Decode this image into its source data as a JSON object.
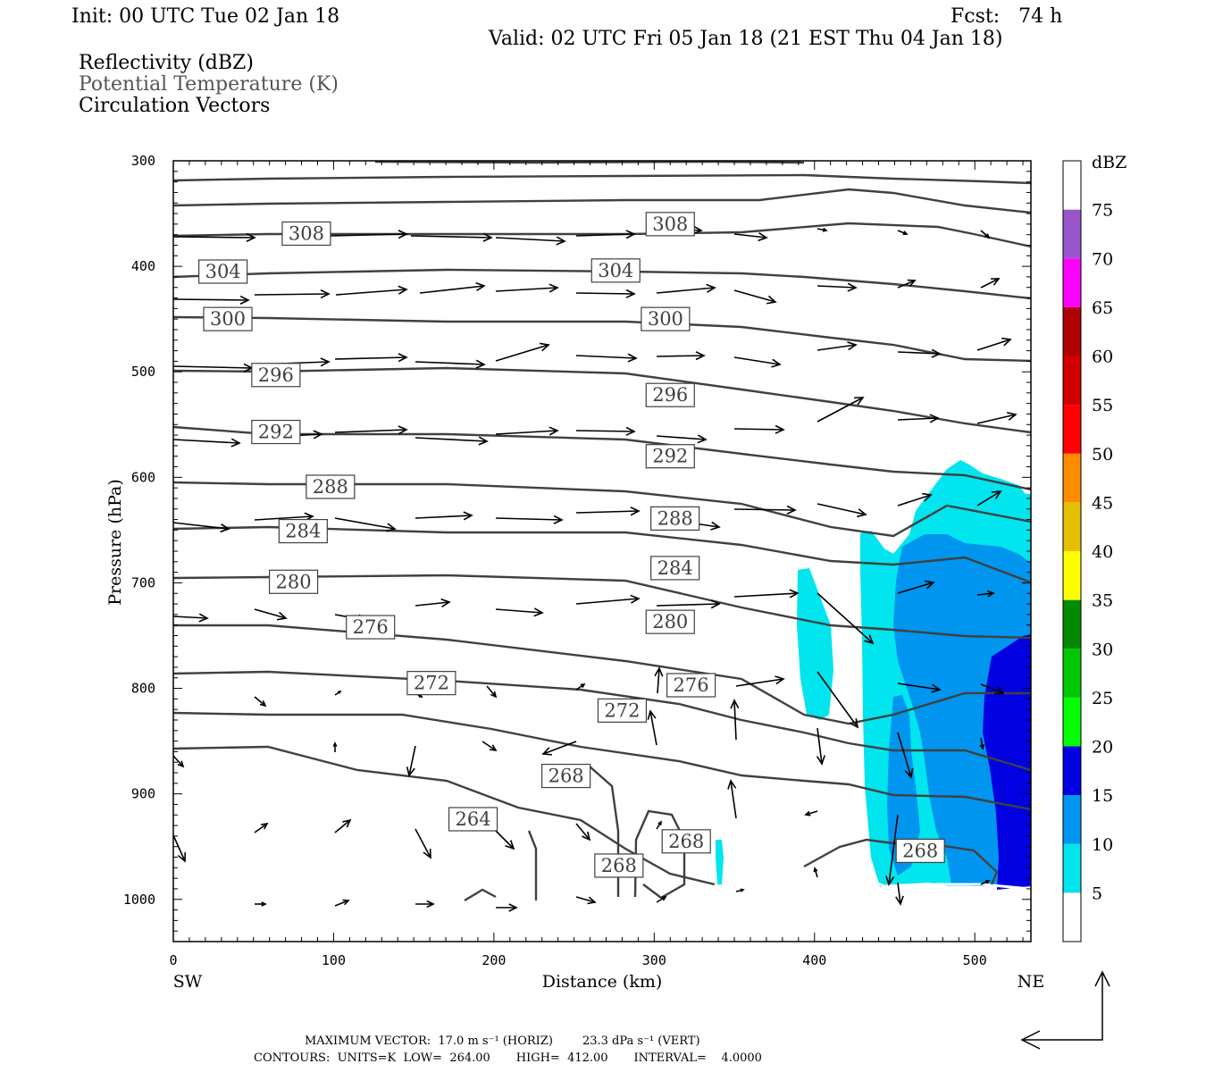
{
  "header": {
    "init": "Init: 00 UTC Tue 02 Jan 18",
    "fcst": "Fcst:   74 h",
    "valid": "Valid: 02 UTC Fri 05 Jan 18 (21 EST Thu 04 Jan 18)",
    "fields": [
      "Reflectivity (dBZ)",
      "Potential Temperature (K)",
      "Circulation Vectors"
    ]
  },
  "footer": {
    "line1": "MAXIMUM VECTOR:  17.0 m s⁻¹ (HORIZ)        23.3 dPa s⁻¹ (VERT)",
    "line2": "CONTOURS:  UNITS=K  LOW=  264.00       HIGH=  412.00       INTERVAL=    4.0000"
  },
  "chart_data": {
    "type": "cross-section",
    "xlabel": "Distance (km)",
    "ylabel": "Pressure (hPa)",
    "xlim": [
      0,
      535
    ],
    "ylim": [
      1040,
      300
    ],
    "x_ticks": [
      0,
      100,
      200,
      300,
      400,
      500
    ],
    "y_ticks": [
      300,
      400,
      500,
      600,
      700,
      800,
      900,
      1000
    ],
    "x_end_labels": {
      "left": "SW",
      "right": "NE"
    },
    "colorbar": {
      "title": "dBZ",
      "levels": [
        5,
        10,
        15,
        20,
        25,
        30,
        35,
        40,
        45,
        50,
        55,
        60,
        65,
        70,
        75
      ],
      "colors": [
        "#ffffff",
        "#00e5ee",
        "#0095ee",
        "#0000e0",
        "#00ff00",
        "#00c800",
        "#008b00",
        "#ffff00",
        "#e6c000",
        "#ff8c00",
        "#ff0000",
        "#d40000",
        "#b00000",
        "#ff00ff",
        "#9955cc",
        "#ffffff"
      ]
    },
    "theta_labels": [
      {
        "text": "308",
        "x": 83,
        "p": 369
      },
      {
        "text": "308",
        "x": 310,
        "p": 360
      },
      {
        "text": "304",
        "x": 31,
        "p": 405
      },
      {
        "text": "304",
        "x": 276,
        "p": 404
      },
      {
        "text": "300",
        "x": 34,
        "p": 450
      },
      {
        "text": "300",
        "x": 307,
        "p": 450
      },
      {
        "text": "296",
        "x": 64,
        "p": 503
      },
      {
        "text": "296",
        "x": 310,
        "p": 522
      },
      {
        "text": "292",
        "x": 64,
        "p": 557
      },
      {
        "text": "292",
        "x": 310,
        "p": 580
      },
      {
        "text": "288",
        "x": 98,
        "p": 609
      },
      {
        "text": "288",
        "x": 313,
        "p": 639
      },
      {
        "text": "284",
        "x": 81,
        "p": 651
      },
      {
        "text": "284",
        "x": 313,
        "p": 686
      },
      {
        "text": "280",
        "x": 75,
        "p": 699
      },
      {
        "text": "280",
        "x": 310,
        "p": 737
      },
      {
        "text": "276",
        "x": 123,
        "p": 742
      },
      {
        "text": "276",
        "x": 323,
        "p": 797
      },
      {
        "text": "272",
        "x": 161,
        "p": 795
      },
      {
        "text": "272",
        "x": 280,
        "p": 821
      },
      {
        "text": "268",
        "x": 245,
        "p": 883
      },
      {
        "text": "268",
        "x": 278,
        "p": 968
      },
      {
        "text": "268",
        "x": 320,
        "p": 945
      },
      {
        "text": "268",
        "x": 466,
        "p": 954
      },
      {
        "text": "264",
        "x": 187,
        "p": 924
      }
    ],
    "max_vector": {
      "horiz_ms": 17.0,
      "vert_dPa_s": 23.3
    },
    "contours": {
      "units": "K",
      "low": 264.0,
      "high": 412.0,
      "interval": 4.0
    }
  }
}
